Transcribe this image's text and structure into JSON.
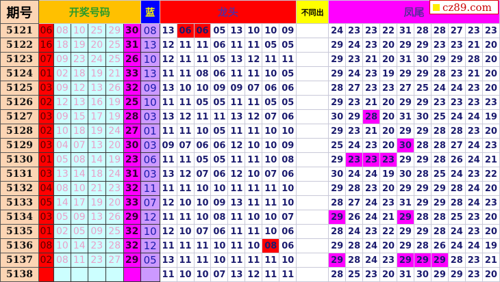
{
  "header": {
    "issue": "期号",
    "draw": "开奖号码",
    "blue": "蓝",
    "dragon": "龙头",
    "diff": "不同出",
    "phoenix": "凤尾"
  },
  "logo": {
    "text": "cz89.com"
  },
  "colors": {
    "red_ball": "#ff0000",
    "mid_balls": "#ccffff",
    "last_red": "#ff00ff",
    "blue_ball": "#cc99ff",
    "dragon_highlight": "#ff0000",
    "phoenix_highlight": "#ff00ff"
  },
  "rows": [
    {
      "issue": "5121",
      "red": [
        "06",
        "08",
        "10",
        "25",
        "29",
        "30"
      ],
      "blue": "08",
      "dragon": [
        "13",
        "06",
        "06",
        "05",
        "13",
        "10",
        "10",
        "09"
      ],
      "dragon_hl": [
        1,
        2
      ],
      "phoenix": [
        "24",
        "23",
        "23",
        "22",
        "31",
        "28",
        "28",
        "27",
        "23",
        "23"
      ],
      "phoenix_hl": []
    },
    {
      "issue": "5122",
      "red": [
        "16",
        "18",
        "19",
        "20",
        "25",
        "31"
      ],
      "blue": "13",
      "dragon": [
        "12",
        "11",
        "11",
        "06",
        "11",
        "11",
        "05",
        "05"
      ],
      "dragon_hl": [],
      "phoenix": [
        "29",
        "24",
        "23",
        "20",
        "29",
        "29",
        "23",
        "23",
        "21",
        "20"
      ],
      "phoenix_hl": []
    },
    {
      "issue": "5123",
      "red": [
        "07",
        "09",
        "23",
        "24",
        "25",
        "26"
      ],
      "blue": "10",
      "dragon": [
        "12",
        "11",
        "11",
        "05",
        "13",
        "12",
        "11",
        "11"
      ],
      "dragon_hl": [],
      "phoenix": [
        "29",
        "23",
        "21",
        "20",
        "31",
        "30",
        "29",
        "29",
        "28",
        "20"
      ],
      "phoenix_hl": []
    },
    {
      "issue": "5124",
      "red": [
        "01",
        "02",
        "18",
        "19",
        "21",
        "33"
      ],
      "blue": "13",
      "dragon": [
        "11",
        "11",
        "08",
        "06",
        "11",
        "11",
        "10",
        "05"
      ],
      "dragon_hl": [],
      "phoenix": [
        "29",
        "24",
        "23",
        "19",
        "29",
        "29",
        "28",
        "23",
        "21",
        "20"
      ],
      "phoenix_hl": []
    },
    {
      "issue": "5125",
      "red": [
        "03",
        "09",
        "12",
        "13",
        "26",
        "32"
      ],
      "blue": "09",
      "dragon": [
        "13",
        "10",
        "10",
        "09",
        "09",
        "07",
        "06",
        "06"
      ],
      "dragon_hl": [],
      "phoenix": [
        "28",
        "27",
        "23",
        "23",
        "27",
        "25",
        "24",
        "24",
        "23",
        "20"
      ],
      "phoenix_hl": []
    },
    {
      "issue": "5126",
      "red": [
        "02",
        "12",
        "13",
        "16",
        "19",
        "25"
      ],
      "blue": "10",
      "dragon": [
        "11",
        "11",
        "05",
        "05",
        "11",
        "11",
        "05",
        "05"
      ],
      "dragon_hl": [],
      "phoenix": [
        "29",
        "23",
        "21",
        "20",
        "29",
        "29",
        "23",
        "23",
        "23",
        "23"
      ],
      "phoenix_hl": []
    },
    {
      "issue": "5127",
      "red": [
        "03",
        "09",
        "15",
        "17",
        "19",
        "28"
      ],
      "blue": "03",
      "dragon": [
        "13",
        "12",
        "11",
        "11",
        "13",
        "12",
        "07",
        "06"
      ],
      "dragon_hl": [],
      "phoenix": [
        "30",
        "29",
        "28",
        "20",
        "31",
        "30",
        "25",
        "24",
        "24",
        "19"
      ],
      "phoenix_hl": [
        2
      ]
    },
    {
      "issue": "5128",
      "red": [
        "02",
        "10",
        "18",
        "19",
        "24",
        "27"
      ],
      "blue": "01",
      "dragon": [
        "11",
        "11",
        "10",
        "05",
        "11",
        "11",
        "10",
        "10"
      ],
      "dragon_hl": [],
      "phoenix": [
        "29",
        "23",
        "21",
        "20",
        "29",
        "29",
        "28",
        "28",
        "23",
        "20"
      ],
      "phoenix_hl": []
    },
    {
      "issue": "5129",
      "red": [
        "03",
        "04",
        "07",
        "13",
        "20",
        "30"
      ],
      "blue": "03",
      "dragon": [
        "09",
        "07",
        "06",
        "06",
        "12",
        "10",
        "10",
        "09"
      ],
      "dragon_hl": [],
      "phoenix": [
        "25",
        "24",
        "23",
        "20",
        "30",
        "28",
        "28",
        "27",
        "24",
        "23"
      ],
      "phoenix_hl": [
        4
      ]
    },
    {
      "issue": "5130",
      "red": [
        "01",
        "05",
        "08",
        "14",
        "19",
        "23"
      ],
      "blue": "06",
      "dragon": [
        "11",
        "11",
        "05",
        "05",
        "11",
        "11",
        "10",
        "08"
      ],
      "dragon_hl": [],
      "phoenix": [
        "29",
        "23",
        "23",
        "23",
        "29",
        "29",
        "28",
        "26",
        "24",
        "21"
      ],
      "phoenix_hl": [
        1,
        2,
        3
      ]
    },
    {
      "issue": "5131",
      "red": [
        "03",
        "13",
        "14",
        "18",
        "24",
        "31"
      ],
      "blue": "03",
      "dragon": [
        "13",
        "12",
        "07",
        "06",
        "12",
        "10",
        "07",
        "06"
      ],
      "dragon_hl": [],
      "phoenix": [
        "30",
        "24",
        "24",
        "19",
        "30",
        "28",
        "25",
        "24",
        "23",
        "22"
      ],
      "phoenix_hl": []
    },
    {
      "issue": "5132",
      "red": [
        "04",
        "08",
        "10",
        "21",
        "23",
        "32"
      ],
      "blue": "11",
      "dragon": [
        "11",
        "11",
        "10",
        "10",
        "11",
        "11",
        "11",
        "10"
      ],
      "dragon_hl": [],
      "phoenix": [
        "29",
        "28",
        "23",
        "20",
        "29",
        "29",
        "29",
        "28",
        "24",
        "20"
      ],
      "phoenix_hl": []
    },
    {
      "issue": "5133",
      "red": [
        "05",
        "14",
        "17",
        "19",
        "20",
        "33"
      ],
      "blue": "07",
      "dragon": [
        "12",
        "10",
        "10",
        "09",
        "13",
        "11",
        "11",
        "10"
      ],
      "dragon_hl": [],
      "phoenix": [
        "28",
        "27",
        "24",
        "23",
        "31",
        "29",
        "29",
        "28",
        "24",
        "23"
      ],
      "phoenix_hl": []
    },
    {
      "issue": "5134",
      "red": [
        "03",
        "05",
        "09",
        "13",
        "26",
        "29"
      ],
      "blue": "12",
      "dragon": [
        "11",
        "11",
        "10",
        "08",
        "11",
        "10",
        "10",
        "07"
      ],
      "dragon_hl": [],
      "phoenix": [
        "29",
        "26",
        "24",
        "21",
        "29",
        "28",
        "28",
        "25",
        "23",
        "20"
      ],
      "phoenix_hl": [
        0,
        4
      ]
    },
    {
      "issue": "5135",
      "red": [
        "01",
        "02",
        "05",
        "09",
        "25",
        "32"
      ],
      "blue": "10",
      "dragon": [
        "12",
        "10",
        "07",
        "06",
        "11",
        "11",
        "10",
        "06"
      ],
      "dragon_hl": [],
      "phoenix": [
        "28",
        "24",
        "23",
        "22",
        "29",
        "29",
        "28",
        "24",
        "23",
        "20"
      ],
      "phoenix_hl": []
    },
    {
      "issue": "5136",
      "red": [
        "08",
        "10",
        "14",
        "23",
        "28",
        "32"
      ],
      "blue": "12",
      "dragon": [
        "11",
        "11",
        "11",
        "10",
        "11",
        "10",
        "08",
        "06"
      ],
      "dragon_hl": [
        6
      ],
      "phoenix": [
        "29",
        "28",
        "24",
        "20",
        "29",
        "28",
        "26",
        "24",
        "24",
        "19"
      ],
      "phoenix_hl": []
    },
    {
      "issue": "5137",
      "red": [
        "02",
        "08",
        "11",
        "23",
        "27",
        "29"
      ],
      "blue": "05",
      "dragon": [
        "13",
        "11",
        "11",
        "10",
        "11",
        "11",
        "11",
        "10"
      ],
      "dragon_hl": [],
      "phoenix": [
        "29",
        "28",
        "24",
        "23",
        "29",
        "29",
        "29",
        "28",
        "23",
        "21"
      ],
      "phoenix_hl": [
        0,
        4,
        5,
        6
      ]
    },
    {
      "issue": "5138",
      "red": [
        "",
        "",
        "",
        "",
        "",
        ""
      ],
      "blue": "",
      "dragon": [
        "11",
        "10",
        "10",
        "07",
        "13",
        "12",
        "11",
        "11"
      ],
      "dragon_hl": [],
      "phoenix": [
        "28",
        "25",
        "23",
        "20",
        "31",
        "30",
        "29",
        "29",
        "23",
        "20"
      ],
      "phoenix_hl": []
    }
  ]
}
